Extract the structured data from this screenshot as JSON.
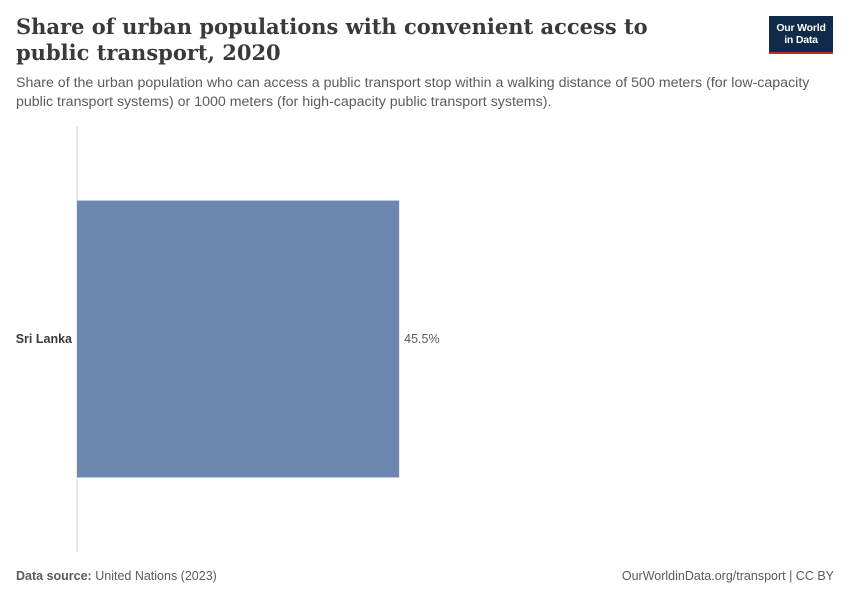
{
  "header": {
    "title": "Share of urban populations with convenient access to public transport, 2020",
    "subtitle": "Share of the urban population who can access a public transport stop within a walking distance of 500 meters (for low-capacity public transport systems) or 1000 meters (for high-capacity public transport systems)."
  },
  "logo": {
    "line1": "Our World",
    "line2": "in Data"
  },
  "footer": {
    "source_label": "Data source:",
    "source_value": "United Nations (2023)",
    "link": "OurWorldinData.org/transport | CC BY"
  },
  "colors": {
    "bar": "#6d87b0",
    "axis": "#d0d0d0",
    "label": "#3a3a3a",
    "value_label": "#5b5b5b"
  },
  "chart_data": {
    "type": "bar",
    "orientation": "horizontal",
    "categories": [
      "Sri Lanka"
    ],
    "values": [
      45.5
    ],
    "value_labels": [
      "45.5%"
    ],
    "xlim": [
      0,
      100
    ]
  }
}
